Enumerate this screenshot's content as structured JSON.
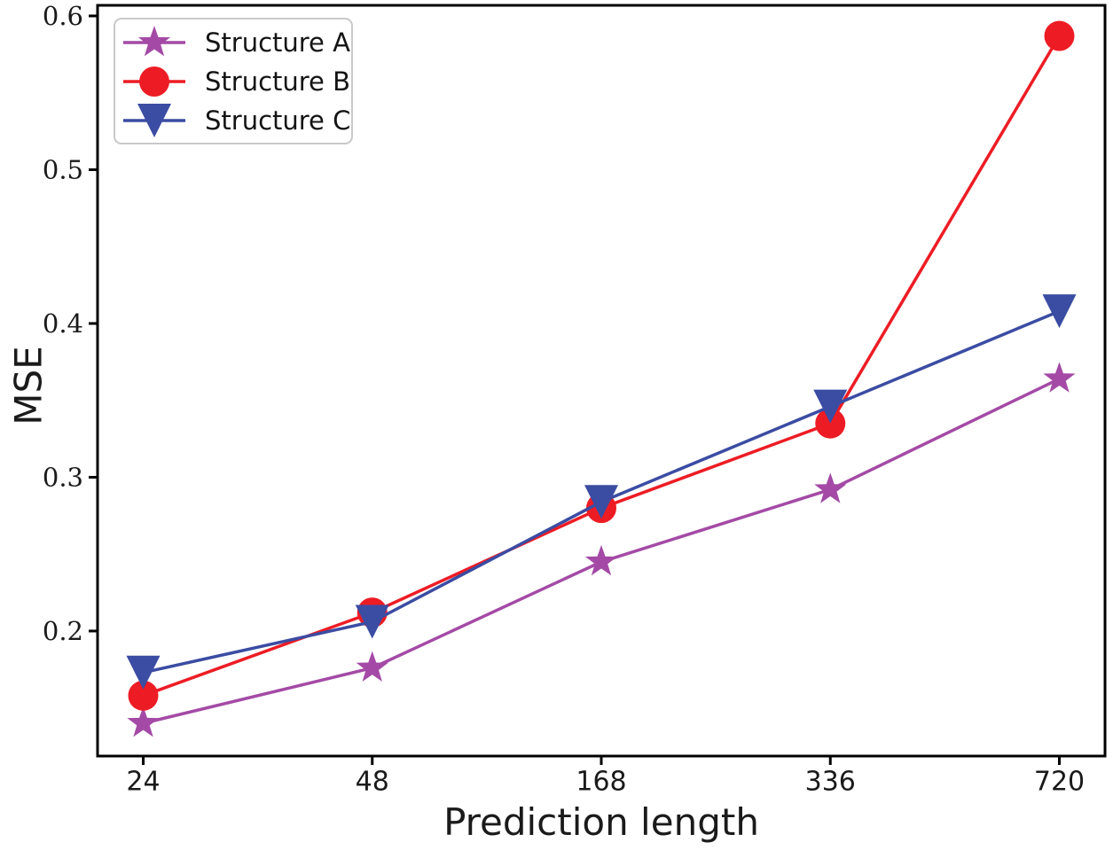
{
  "chart_data": {
    "type": "line",
    "title": "",
    "xlabel": "Prediction length",
    "ylabel": "MSE",
    "x_scale": "categorical",
    "categories": [
      24,
      48,
      168,
      336,
      720
    ],
    "x_tick_labels": [
      "24",
      "48",
      "168",
      "336",
      "720"
    ],
    "y_tick_labels": [
      "0.2",
      "0.3",
      "0.4",
      "0.5",
      "0.6"
    ],
    "yticks": [
      0.2,
      0.3,
      0.4,
      0.5,
      0.6
    ],
    "ylim": [
      0.1187,
      0.6069
    ],
    "grid": false,
    "legend_position": "upper-left",
    "series": [
      {
        "name": "Structure A",
        "marker": "star",
        "color": "#a44aa6",
        "values": [
          0.14,
          0.176,
          0.245,
          0.292,
          0.364
        ]
      },
      {
        "name": "Structure B",
        "marker": "circle",
        "color": "#ed1c24",
        "values": [
          0.158,
          0.212,
          0.28,
          0.335,
          0.587
        ]
      },
      {
        "name": "Structure C",
        "marker": "triangle-down",
        "color": "#3b4ca3",
        "values": [
          0.173,
          0.206,
          0.284,
          0.346,
          0.408
        ]
      }
    ],
    "colors": {
      "axis": "#000000",
      "tick_text": "#1a1a1a",
      "legend_border": "#c9c9c9",
      "background": "#ffffff"
    }
  }
}
